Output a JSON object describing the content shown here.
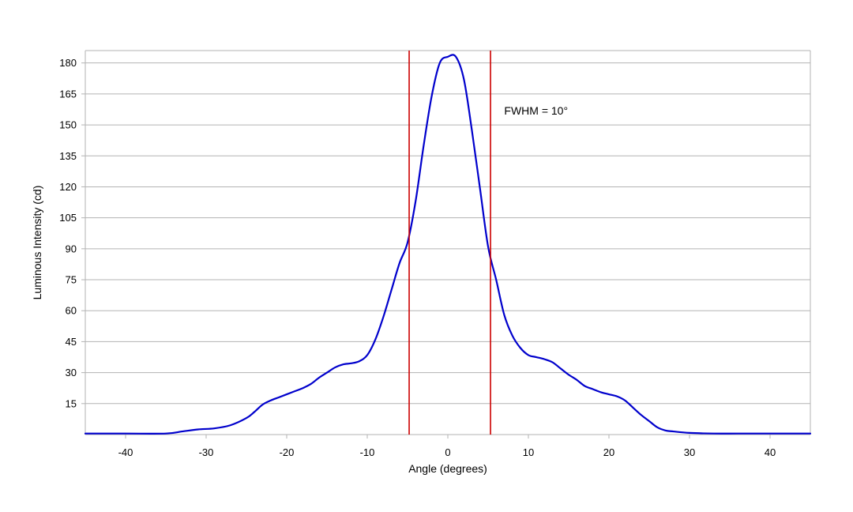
{
  "chart_data": {
    "type": "line",
    "xlabel": "Angle (degrees)",
    "ylabel": "Luminous Intensity (cd)",
    "xlim": [
      -45,
      45
    ],
    "ylim": [
      0,
      186
    ],
    "x_ticks": [
      -40,
      -30,
      -20,
      -10,
      0,
      10,
      20,
      30,
      40
    ],
    "y_ticks": [
      15,
      30,
      45,
      60,
      75,
      90,
      105,
      120,
      135,
      150,
      165,
      180
    ],
    "grid": "horizontal",
    "series": [
      {
        "color": "#0000cc",
        "x": [
          -45,
          -40,
          -35,
          -33,
          -31,
          -29,
          -27,
          -25,
          -24,
          -23,
          -22,
          -21,
          -20,
          -19,
          -18,
          -17,
          -16,
          -15,
          -14,
          -13,
          -12,
          -11,
          -10,
          -9,
          -8,
          -7,
          -6,
          -5,
          -4,
          -3,
          -2,
          -1,
          0,
          1,
          2,
          3,
          4,
          5,
          6,
          7,
          8,
          9,
          10,
          11,
          12,
          13,
          14,
          15,
          16,
          17,
          18,
          19,
          20,
          21,
          22,
          23,
          24,
          25,
          26,
          27,
          28,
          30,
          33,
          36,
          40,
          45
        ],
        "y": [
          0.5,
          0.5,
          0.5,
          1.5,
          2.5,
          3.0,
          4.5,
          8,
          11,
          14.5,
          16.5,
          18,
          19.5,
          21,
          22.5,
          24.5,
          27.5,
          30,
          32.5,
          34,
          34.5,
          35.5,
          38.5,
          46,
          57,
          70,
          83,
          93,
          113,
          140,
          164,
          180,
          183,
          183,
          172,
          147,
          119,
          91,
          75,
          58,
          48,
          42,
          38.5,
          37.5,
          36.5,
          35,
          32,
          29,
          26.5,
          23.5,
          22,
          20.5,
          19.5,
          18.5,
          16.5,
          13,
          9.5,
          6.5,
          3.5,
          2.0,
          1.5,
          0.8,
          0.5,
          0.5,
          0.5,
          0.5
        ]
      }
    ],
    "vlines": [
      {
        "x": -4.8,
        "color": "#cc0000"
      },
      {
        "x": 5.3,
        "color": "#cc0000"
      }
    ],
    "annotations": [
      {
        "text": "FWHM = 10°",
        "x": 7,
        "y": 155
      }
    ]
  },
  "colors": {
    "grid": "#b3b3b3",
    "frame": "#b3b3b3",
    "curve": "#0000cc",
    "fwhm_line": "#cc0000"
  }
}
